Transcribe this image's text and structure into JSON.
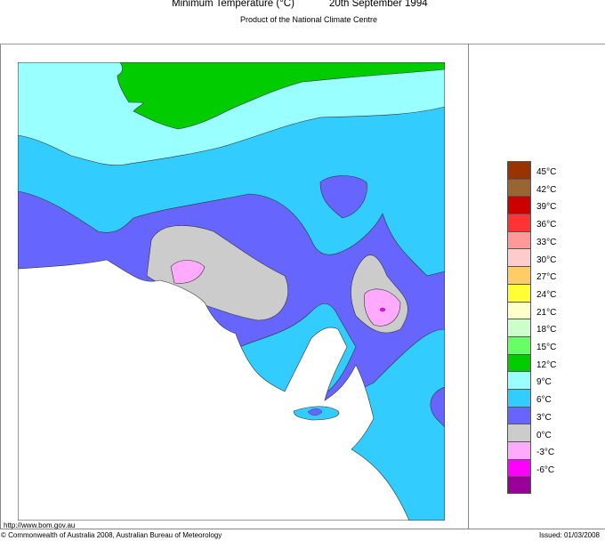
{
  "header": {
    "title_left": "Minimum Temperature (°C)",
    "title_right": "20th September 1994",
    "subtitle": "Product of the National Climate Centre"
  },
  "legend": {
    "swatches": [
      {
        "color": "#993300"
      },
      {
        "color": "#996633"
      },
      {
        "color": "#cc0000"
      },
      {
        "color": "#ff3333"
      },
      {
        "color": "#ff9999"
      },
      {
        "color": "#ffcccc"
      },
      {
        "color": "#ffcc66"
      },
      {
        "color": "#ffff33"
      },
      {
        "color": "#ffffcc"
      },
      {
        "color": "#ccffcc"
      },
      {
        "color": "#66ff66"
      },
      {
        "color": "#00cc00"
      },
      {
        "color": "#99ffff"
      },
      {
        "color": "#33ccff"
      },
      {
        "color": "#6666ff"
      },
      {
        "color": "#cccccc"
      },
      {
        "color": "#ffaaff"
      },
      {
        "color": "#ff00ff"
      },
      {
        "color": "#990099"
      }
    ],
    "labels": [
      "45°C",
      "42°C",
      "39°C",
      "36°C",
      "33°C",
      "30°C",
      "27°C",
      "24°C",
      "21°C",
      "18°C",
      "15°C",
      "12°C",
      "9°C",
      "6°C",
      "3°C",
      "0°C",
      "-3°C",
      "-6°C"
    ]
  },
  "map": {
    "region": "South Australia",
    "zones": [
      {
        "band": "12-15°C",
        "color": "#00cc00",
        "location": "north-central"
      },
      {
        "band": "9-12°C",
        "color": "#99ffff",
        "location": "north"
      },
      {
        "band": "6-9°C",
        "color": "#33ccff",
        "location": "central band and south-east coast"
      },
      {
        "band": "3-6°C",
        "color": "#6666ff",
        "location": "southern interior"
      },
      {
        "band": "0-3°C",
        "color": "#cccccc",
        "location": "Eyre Peninsula interior and Mount Lofty region"
      },
      {
        "band": "-3-0°C",
        "color": "#ffaaff",
        "location": "Gawler Ranges and Mount Lofty Ranges"
      }
    ],
    "land_background": "#ffffff"
  },
  "footer": {
    "url": "http://www.bom.gov.au",
    "copyright": "© Commonwealth of Australia 2008, Australian Bureau of Meteorology",
    "issued": "Issued: 01/03/2008"
  }
}
